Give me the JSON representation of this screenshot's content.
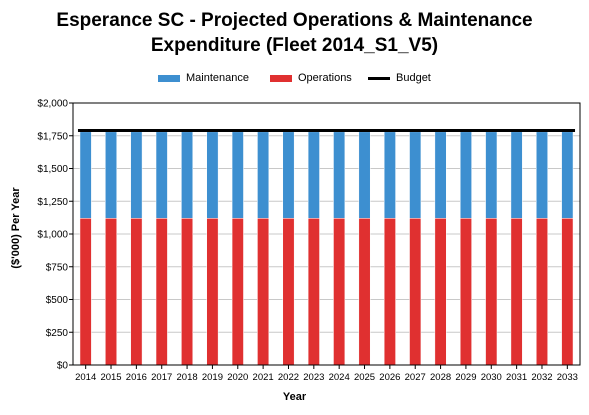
{
  "title_line1": "Esperance SC - Projected Operations & Maintenance",
  "title_line2": "Expenditure (Fleet 2014_S1_V5)",
  "chart_data": {
    "type": "bar",
    "stacked": true,
    "title": "Esperance SC - Projected Operations & Maintenance Expenditure (Fleet 2014_S1_V5)",
    "xlabel": "Year",
    "ylabel": "($'000) Per Year",
    "ylim": [
      0,
      2000
    ],
    "yticks": [
      "$0",
      "$250",
      "$500",
      "$750",
      "$1,000",
      "$1,250",
      "$1,500",
      "$1,750",
      "$2,000"
    ],
    "ytick_values": [
      0,
      250,
      500,
      750,
      1000,
      1250,
      1500,
      1750,
      2000
    ],
    "categories": [
      "2014",
      "2015",
      "2016",
      "2017",
      "2018",
      "2019",
      "2020",
      "2021",
      "2022",
      "2023",
      "2024",
      "2025",
      "2026",
      "2027",
      "2028",
      "2029",
      "2030",
      "2031",
      "2032",
      "2033"
    ],
    "series": [
      {
        "name": "Operations",
        "color": "#e03030",
        "values": [
          1120,
          1120,
          1120,
          1120,
          1120,
          1120,
          1120,
          1120,
          1120,
          1120,
          1120,
          1120,
          1120,
          1120,
          1120,
          1120,
          1120,
          1120,
          1120,
          1120
        ]
      },
      {
        "name": "Maintenance",
        "color": "#3d8fd0",
        "values": [
          660,
          660,
          660,
          660,
          660,
          660,
          660,
          660,
          660,
          660,
          660,
          660,
          660,
          660,
          660,
          660,
          660,
          660,
          660,
          660
        ]
      }
    ],
    "budget": {
      "name": "Budget",
      "color": "#000000",
      "values": [
        1790,
        1790,
        1790,
        1790,
        1790,
        1790,
        1790,
        1790,
        1790,
        1790,
        1790,
        1790,
        1790,
        1790,
        1790,
        1790,
        1790,
        1790,
        1790,
        1790
      ]
    },
    "legend_order": [
      "Maintenance",
      "Operations",
      "Budget"
    ],
    "legend_position": "top",
    "grid": true
  }
}
